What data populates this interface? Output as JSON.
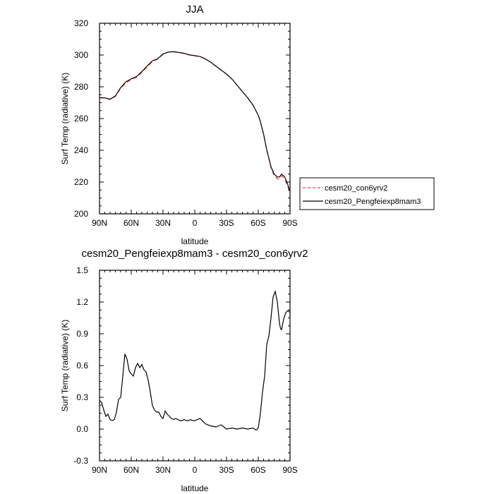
{
  "chart_data": [
    {
      "type": "line",
      "title": "JJA",
      "xlabel": "latitude",
      "ylabel": "Surf Temp (radiative) (K)",
      "xlim": [
        90,
        -90
      ],
      "ylim": [
        200,
        320
      ],
      "x_ticks": [
        90,
        60,
        30,
        0,
        -30,
        -60,
        -90
      ],
      "x_tick_labels": [
        "90N",
        "60N",
        "30N",
        "0",
        "30S",
        "60S",
        "90S"
      ],
      "y_ticks": [
        200,
        220,
        240,
        260,
        280,
        300,
        320
      ],
      "y_tick_labels": [
        "200",
        "220",
        "240",
        "260",
        "280",
        "300",
        "320"
      ],
      "legend": [
        "cesm20_con6yrv2",
        "cesm20_Pengfeiexp8mam3"
      ],
      "legend_position": "right",
      "series": [
        {
          "name": "cesm20_con6yrv2",
          "color": "#ff3b3b",
          "dash": "dashed",
          "x": [
            90,
            85,
            80,
            75,
            70,
            65,
            60,
            55,
            50,
            45,
            40,
            35,
            30,
            25,
            20,
            15,
            10,
            5,
            0,
            -5,
            -10,
            -15,
            -20,
            -25,
            -30,
            -35,
            -40,
            -45,
            -50,
            -55,
            -60,
            -62,
            -65,
            -68,
            -70,
            -72,
            -75,
            -78,
            -80,
            -82,
            -85,
            -88,
            -90
          ],
          "y": [
            273,
            273,
            272,
            274,
            279,
            282.5,
            284.5,
            286,
            289,
            292.5,
            295.8,
            297.5,
            300.5,
            301.8,
            302,
            301.5,
            301,
            300,
            299.5,
            299,
            297.5,
            295.5,
            293,
            290.5,
            288,
            285,
            281,
            277,
            273,
            268.5,
            262,
            258,
            250,
            240,
            234.5,
            229,
            224,
            222,
            222,
            224,
            222,
            217,
            213
          ]
        },
        {
          "name": "cesm20_Pengfeiexp8mam3",
          "color": "#000000",
          "dash": "solid",
          "x": [
            90,
            85,
            80,
            75,
            70,
            65,
            60,
            55,
            50,
            45,
            40,
            35,
            30,
            25,
            20,
            15,
            10,
            5,
            0,
            -5,
            -10,
            -15,
            -20,
            -25,
            -30,
            -35,
            -40,
            -45,
            -50,
            -55,
            -60,
            -62,
            -65,
            -68,
            -70,
            -72,
            -75,
            -78,
            -80,
            -82,
            -85,
            -88,
            -90
          ],
          "y": [
            273.2,
            273,
            272.2,
            274.2,
            279.5,
            283.2,
            285,
            286.5,
            289.6,
            293.1,
            296.4,
            297.7,
            300.7,
            301.9,
            302.1,
            301.6,
            301.1,
            300.1,
            299.6,
            299.1,
            297.6,
            295.5,
            293,
            290.5,
            288,
            285,
            281,
            277,
            273,
            268.5,
            262,
            258,
            250.2,
            240.3,
            235,
            229.6,
            225,
            223.2,
            223.2,
            225,
            223.3,
            218.2,
            214
          ]
        }
      ]
    },
    {
      "type": "line",
      "title": "cesm20_Pengfeiexp8mam3 - cesm20_con6yrv2",
      "xlabel": "latitude",
      "ylabel": "Surf Temp (radiative) (K)",
      "xlim": [
        90,
        -90
      ],
      "ylim": [
        -0.3,
        1.5
      ],
      "x_ticks": [
        90,
        60,
        30,
        0,
        -30,
        -60,
        -90
      ],
      "x_tick_labels": [
        "90N",
        "60N",
        "30N",
        "0",
        "30S",
        "60S",
        "90S"
      ],
      "y_ticks": [
        -0.3,
        0,
        0.3,
        0.6,
        0.9,
        1.2,
        1.5
      ],
      "y_tick_labels": [
        "-0.3",
        "0.0",
        "0.3",
        "0.6",
        "0.9",
        "1.2",
        "1.5"
      ],
      "series": [
        {
          "color": "#000000",
          "dash": "solid",
          "x": [
            90,
            88,
            86,
            84,
            82,
            80,
            78,
            76,
            74,
            72,
            70,
            68,
            66,
            64,
            62,
            60,
            58,
            56,
            54,
            52,
            50,
            48,
            46,
            44,
            42,
            40,
            38,
            36,
            34,
            32,
            30,
            28,
            26,
            24,
            22,
            20,
            18,
            16,
            14,
            12,
            10,
            8,
            6,
            4,
            2,
            0,
            -5,
            -10,
            -15,
            -20,
            -25,
            -30,
            -35,
            -40,
            -45,
            -50,
            -55,
            -58,
            -60,
            -62,
            -64,
            -66,
            -68,
            -70,
            -72,
            -74,
            -76,
            -78,
            -80,
            -81,
            -82,
            -84,
            -86,
            -88,
            -90
          ],
          "y": [
            0.27,
            0.25,
            0.18,
            0.12,
            0.14,
            0.09,
            0.08,
            0.09,
            0.16,
            0.28,
            0.3,
            0.5,
            0.71,
            0.66,
            0.55,
            0.52,
            0.5,
            0.58,
            0.62,
            0.58,
            0.61,
            0.56,
            0.54,
            0.46,
            0.35,
            0.22,
            0.18,
            0.16,
            0.16,
            0.12,
            0.1,
            0.17,
            0.14,
            0.12,
            0.1,
            0.09,
            0.1,
            0.09,
            0.08,
            0.08,
            0.09,
            0.08,
            0.08,
            0.09,
            0.08,
            0.08,
            0.1,
            0.05,
            0.03,
            0.02,
            0.04,
            0.0,
            0.01,
            0.0,
            0.01,
            0.0,
            0.01,
            -0.01,
            0.01,
            0.15,
            0.35,
            0.5,
            0.8,
            0.88,
            1.05,
            1.25,
            1.3,
            1.2,
            1.0,
            0.95,
            0.94,
            1.04,
            1.1,
            1.12,
            1.1
          ]
        }
      ]
    }
  ]
}
